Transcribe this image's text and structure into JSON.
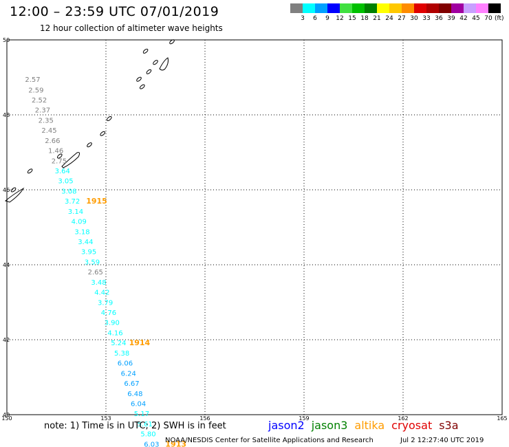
{
  "header": {
    "title": "12:00 – 23:59 UTC 07/01/2019",
    "subtitle": "12 hour collection of altimeter wave heights"
  },
  "legend": {
    "unit": "(ft)",
    "bins": [
      {
        "label": "3",
        "color": "#808080"
      },
      {
        "label": "6",
        "color": "#00ffff"
      },
      {
        "label": "9",
        "color": "#00a0ff"
      },
      {
        "label": "12",
        "color": "#0000ff"
      },
      {
        "label": "15",
        "color": "#40e040"
      },
      {
        "label": "18",
        "color": "#00c000"
      },
      {
        "label": "21",
        "color": "#008000"
      },
      {
        "label": "24",
        "color": "#ffff00"
      },
      {
        "label": "27",
        "color": "#ffc800"
      },
      {
        "label": "30",
        "color": "#ff8c00"
      },
      {
        "label": "33",
        "color": "#e00000"
      },
      {
        "label": "36",
        "color": "#b00000"
      },
      {
        "label": "39",
        "color": "#800000"
      },
      {
        "label": "42",
        "color": "#a000a0"
      },
      {
        "label": "45",
        "color": "#c8a0ff"
      },
      {
        "label": "70",
        "color": "#ff80ff"
      },
      {
        "label": "",
        "color": "#000000"
      }
    ]
  },
  "chart_data": {
    "type": "scatter",
    "xlim": [
      150,
      165
    ],
    "ylim": [
      40,
      50
    ],
    "xticks": [
      "150",
      "153",
      "156",
      "159",
      "162",
      "165"
    ],
    "yticks": [
      "40",
      "42",
      "44",
      "46",
      "48",
      "50"
    ],
    "grid": true,
    "points": [
      {
        "lon": 150.55,
        "lat": 48.88,
        "swh": "2.57",
        "color": "#808080"
      },
      {
        "lon": 150.65,
        "lat": 48.6,
        "swh": "2.59",
        "color": "#808080"
      },
      {
        "lon": 150.75,
        "lat": 48.33,
        "swh": "2.52",
        "color": "#808080"
      },
      {
        "lon": 150.85,
        "lat": 48.06,
        "swh": "2.37",
        "color": "#808080"
      },
      {
        "lon": 150.95,
        "lat": 47.79,
        "swh": "2.35",
        "color": "#808080"
      },
      {
        "lon": 151.05,
        "lat": 47.52,
        "swh": "2.45",
        "color": "#808080"
      },
      {
        "lon": 151.15,
        "lat": 47.25,
        "swh": "2.66",
        "color": "#808080"
      },
      {
        "lon": 151.25,
        "lat": 46.98,
        "swh": "1.46",
        "color": "#808080"
      },
      {
        "lon": 151.35,
        "lat": 46.71,
        "swh": "2.75",
        "color": "#808080"
      },
      {
        "lon": 151.45,
        "lat": 46.44,
        "swh": "3.64",
        "color": "#00ffff"
      },
      {
        "lon": 151.55,
        "lat": 46.17,
        "swh": "3.05",
        "color": "#00ffff"
      },
      {
        "lon": 151.65,
        "lat": 45.9,
        "swh": "3.08",
        "color": "#00ffff"
      },
      {
        "lon": 151.75,
        "lat": 45.63,
        "swh": "3.72",
        "color": "#00ffff"
      },
      {
        "lon": 151.85,
        "lat": 45.36,
        "swh": "3.14",
        "color": "#00ffff"
      },
      {
        "lon": 151.95,
        "lat": 45.09,
        "swh": "4.09",
        "color": "#00ffff"
      },
      {
        "lon": 152.05,
        "lat": 44.82,
        "swh": "3.18",
        "color": "#00ffff"
      },
      {
        "lon": 152.15,
        "lat": 44.55,
        "swh": "3.44",
        "color": "#00ffff"
      },
      {
        "lon": 152.25,
        "lat": 44.28,
        "swh": "3.95",
        "color": "#00ffff"
      },
      {
        "lon": 152.35,
        "lat": 44.01,
        "swh": "3.59",
        "color": "#00ffff"
      },
      {
        "lon": 152.45,
        "lat": 43.74,
        "swh": "2.65",
        "color": "#808080"
      },
      {
        "lon": 152.55,
        "lat": 43.47,
        "swh": "3.48",
        "color": "#00ffff"
      },
      {
        "lon": 152.65,
        "lat": 43.2,
        "swh": "4.42",
        "color": "#00ffff"
      },
      {
        "lon": 152.75,
        "lat": 42.93,
        "swh": "3.79",
        "color": "#00ffff"
      },
      {
        "lon": 152.85,
        "lat": 42.66,
        "swh": "4.76",
        "color": "#00ffff"
      },
      {
        "lon": 152.95,
        "lat": 42.39,
        "swh": "3.90",
        "color": "#00ffff"
      },
      {
        "lon": 153.05,
        "lat": 42.12,
        "swh": "4.16",
        "color": "#00ffff"
      },
      {
        "lon": 153.15,
        "lat": 41.85,
        "swh": "5.24",
        "color": "#00ffff"
      },
      {
        "lon": 153.25,
        "lat": 41.58,
        "swh": "5.38",
        "color": "#00ffff"
      },
      {
        "lon": 153.35,
        "lat": 41.31,
        "swh": "6.06",
        "color": "#00a0ff"
      },
      {
        "lon": 153.45,
        "lat": 41.04,
        "swh": "6.24",
        "color": "#00a0ff"
      },
      {
        "lon": 153.55,
        "lat": 40.77,
        "swh": "6.67",
        "color": "#00a0ff"
      },
      {
        "lon": 153.65,
        "lat": 40.5,
        "swh": "6.48",
        "color": "#00a0ff"
      },
      {
        "lon": 153.75,
        "lat": 40.23,
        "swh": "6.04",
        "color": "#00a0ff"
      },
      {
        "lon": 153.85,
        "lat": 39.96,
        "swh": "5.17",
        "color": "#00ffff"
      },
      {
        "lon": 153.95,
        "lat": 39.69,
        "swh": "5.61",
        "color": "#00ffff"
      },
      {
        "lon": 154.05,
        "lat": 39.42,
        "swh": "5.80",
        "color": "#00ffff"
      },
      {
        "lon": 154.15,
        "lat": 39.15,
        "swh": "6.03",
        "color": "#00a0ff"
      }
    ],
    "time_labels": [
      {
        "lon": 152.4,
        "lat": 45.63,
        "text": "1915",
        "color": "#ff9c00"
      },
      {
        "lon": 153.7,
        "lat": 41.85,
        "text": "1914",
        "color": "#ff9c00"
      },
      {
        "lon": 154.8,
        "lat": 39.15,
        "text": "1913",
        "color": "#ff9c00"
      }
    ],
    "coastlines": [
      {
        "lat": 49.95,
        "lon": 155.0
      },
      {
        "lat": 49.7,
        "lon": 154.2
      },
      {
        "lat": 49.4,
        "lon": 154.5
      },
      {
        "lat": 49.15,
        "lon": 154.3
      },
      {
        "lat": 48.95,
        "lon": 154.0
      },
      {
        "lat": 48.75,
        "lon": 154.1
      },
      {
        "lat": 47.9,
        "lon": 153.1
      },
      {
        "lat": 47.5,
        "lon": 152.9
      },
      {
        "lat": 47.2,
        "lon": 152.5
      },
      {
        "lat": 46.9,
        "lon": 151.6
      },
      {
        "lat": 46.5,
        "lon": 150.7
      },
      {
        "lat": 46.0,
        "lon": 150.2
      }
    ]
  },
  "footer": {
    "note": "note:  1) Time is in UTC;  2) SWH is in feet",
    "satellites": [
      {
        "name": "jason2",
        "color": "#0000ff"
      },
      {
        "name": "jason3",
        "color": "#008000"
      },
      {
        "name": "altika",
        "color": "#ff9c00"
      },
      {
        "name": "cryosat",
        "color": "#e00000"
      },
      {
        "name": "s3a",
        "color": "#800000"
      }
    ],
    "credit": "NOAA/NESDIS Center for Satellite Applications and Research",
    "timestamp": "Jul  2 12:27:40 UTC 2019"
  }
}
